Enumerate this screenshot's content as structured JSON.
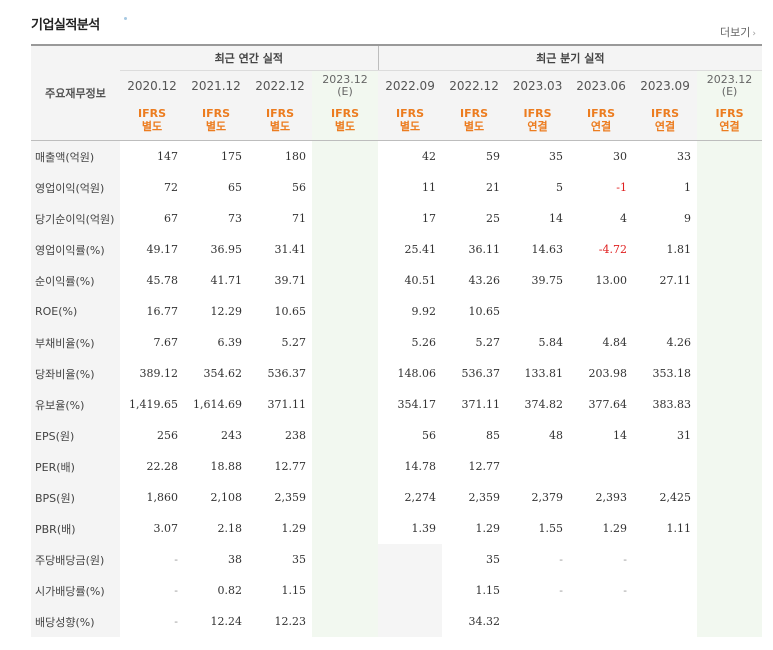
{
  "header": {
    "title": "기업실적분석",
    "more_label": "더보기"
  },
  "table": {
    "corner_label": "주요재무정보",
    "annual_group": "최근 연간 실적",
    "quarter_group": "최근 분기 실적",
    "periods": [
      {
        "year": "2020.12",
        "est": "",
        "std": [
          "IFRS",
          "별도"
        ],
        "estimate": false
      },
      {
        "year": "2021.12",
        "est": "",
        "std": [
          "IFRS",
          "별도"
        ],
        "estimate": false
      },
      {
        "year": "2022.12",
        "est": "",
        "std": [
          "IFRS",
          "별도"
        ],
        "estimate": false
      },
      {
        "year": "2023.12",
        "est": "(E)",
        "std": [
          "IFRS",
          "별도"
        ],
        "estimate": true
      },
      {
        "year": "2022.09",
        "est": "",
        "std": [
          "IFRS",
          "별도"
        ],
        "estimate": false
      },
      {
        "year": "2022.12",
        "est": "",
        "std": [
          "IFRS",
          "별도"
        ],
        "estimate": false
      },
      {
        "year": "2023.03",
        "est": "",
        "std": [
          "IFRS",
          "연결"
        ],
        "estimate": false
      },
      {
        "year": "2023.06",
        "est": "",
        "std": [
          "IFRS",
          "연결"
        ],
        "estimate": false
      },
      {
        "year": "2023.09",
        "est": "",
        "std": [
          "IFRS",
          "연결"
        ],
        "estimate": false
      },
      {
        "year": "2023.12",
        "est": "(E)",
        "std": [
          "IFRS",
          "연결"
        ],
        "estimate": true
      }
    ],
    "rows": [
      {
        "label": "매출액(억원)",
        "values": [
          "147",
          "175",
          "180",
          "",
          "42",
          "59",
          "35",
          "30",
          "33",
          ""
        ]
      },
      {
        "label": "영업이익(억원)",
        "values": [
          "72",
          "65",
          "56",
          "",
          "11",
          "21",
          "5",
          "-1",
          "1",
          ""
        ]
      },
      {
        "label": "당기순이익(억원)",
        "values": [
          "67",
          "73",
          "71",
          "",
          "17",
          "25",
          "14",
          "4",
          "9",
          ""
        ]
      },
      {
        "label": "영업이익률(%)",
        "values": [
          "49.17",
          "36.95",
          "31.41",
          "",
          "25.41",
          "36.11",
          "14.63",
          "-4.72",
          "1.81",
          ""
        ]
      },
      {
        "label": "순이익률(%)",
        "values": [
          "45.78",
          "41.71",
          "39.71",
          "",
          "40.51",
          "43.26",
          "39.75",
          "13.00",
          "27.11",
          ""
        ]
      },
      {
        "label": "ROE(%)",
        "values": [
          "16.77",
          "12.29",
          "10.65",
          "",
          "9.92",
          "10.65",
          "",
          "",
          "",
          ""
        ]
      },
      {
        "label": "부채비율(%)",
        "values": [
          "7.67",
          "6.39",
          "5.27",
          "",
          "5.26",
          "5.27",
          "5.84",
          "4.84",
          "4.26",
          ""
        ]
      },
      {
        "label": "당좌비율(%)",
        "values": [
          "389.12",
          "354.62",
          "536.37",
          "",
          "148.06",
          "536.37",
          "133.81",
          "203.98",
          "353.18",
          ""
        ]
      },
      {
        "label": "유보율(%)",
        "values": [
          "1,419.65",
          "1,614.69",
          "371.11",
          "",
          "354.17",
          "371.11",
          "374.82",
          "377.64",
          "383.83",
          ""
        ]
      },
      {
        "label": "EPS(원)",
        "values": [
          "256",
          "243",
          "238",
          "",
          "56",
          "85",
          "48",
          "14",
          "31",
          ""
        ]
      },
      {
        "label": "PER(배)",
        "values": [
          "22.28",
          "18.88",
          "12.77",
          "",
          "14.78",
          "12.77",
          "",
          "",
          "",
          ""
        ]
      },
      {
        "label": "BPS(원)",
        "values": [
          "1,860",
          "2,108",
          "2,359",
          "",
          "2,274",
          "2,359",
          "2,379",
          "2,393",
          "2,425",
          ""
        ]
      },
      {
        "label": "PBR(배)",
        "values": [
          "3.07",
          "2.18",
          "1.29",
          "",
          "1.39",
          "1.29",
          "1.55",
          "1.29",
          "1.11",
          ""
        ]
      },
      {
        "label": "주당배당금(원)",
        "values": [
          "-",
          "38",
          "35",
          "",
          "",
          "35",
          "-",
          "-",
          "",
          ""
        ]
      },
      {
        "label": "시가배당률(%)",
        "values": [
          "-",
          "0.82",
          "1.15",
          "",
          "",
          "1.15",
          "-",
          "-",
          "",
          ""
        ]
      },
      {
        "label": "배당성향(%)",
        "values": [
          "-",
          "12.24",
          "12.23",
          "",
          "",
          "34.32",
          "",
          "",
          "",
          ""
        ]
      }
    ],
    "group_end_rows": [
      2,
      5,
      8,
      12,
      15
    ],
    "gray_cells": [
      [
        13,
        4
      ],
      [
        14,
        4
      ],
      [
        15,
        4
      ]
    ]
  }
}
